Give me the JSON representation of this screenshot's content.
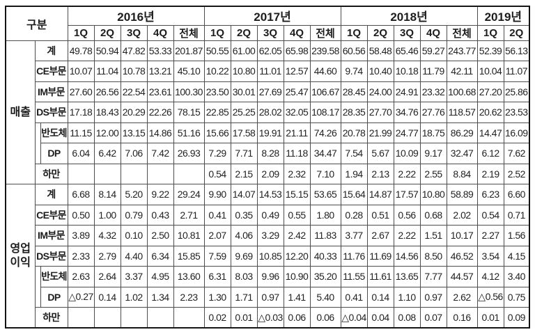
{
  "table": {
    "corner_label": "구분",
    "years": [
      {
        "label": "2016년",
        "quarters": [
          "1Q",
          "2Q",
          "3Q",
          "4Q",
          "전체"
        ]
      },
      {
        "label": "2017년",
        "quarters": [
          "1Q",
          "2Q",
          "3Q",
          "4Q",
          "전체"
        ]
      },
      {
        "label": "2018년",
        "quarters": [
          "1Q",
          "2Q",
          "3Q",
          "4Q",
          "전체"
        ]
      },
      {
        "label": "2019년",
        "quarters": [
          "1Q",
          "2Q"
        ]
      }
    ],
    "sections": [
      {
        "label": "매출",
        "rows": [
          {
            "label": "계",
            "indent": false,
            "values": [
              "49.78",
              "50.94",
              "47.82",
              "53.33",
              "201.87",
              "50.55",
              "61.00",
              "62.05",
              "65.98",
              "239.58",
              "60.56",
              "58.48",
              "65.46",
              "59.27",
              "243.77",
              "52.39",
              "56.13"
            ]
          },
          {
            "label": "CE부문",
            "indent": false,
            "values": [
              "10.07",
              "11.04",
              "10.78",
              "13.21",
              "45.10",
              "10.22",
              "10.80",
              "11.01",
              "12.57",
              "44.60",
              "9.74",
              "10.40",
              "10.18",
              "11.79",
              "42.11",
              "10.04",
              "11.07"
            ]
          },
          {
            "label": "IM부문",
            "indent": false,
            "values": [
              "27.60",
              "26.56",
              "22.54",
              "23.61",
              "100.30",
              "23.50",
              "30.01",
              "27.69",
              "25.47",
              "106.67",
              "28.45",
              "24.00",
              "24.91",
              "23.32",
              "100.68",
              "27.20",
              "25.86"
            ]
          },
          {
            "label": "DS부문",
            "indent": false,
            "values": [
              "17.18",
              "18.43",
              "20.29",
              "22.26",
              "78.15",
              "22.85",
              "25.25",
              "28.02",
              "32.05",
              "108.17",
              "28.35",
              "27.70",
              "34.76",
              "27.76",
              "118.57",
              "20.62",
              "23.53"
            ]
          },
          {
            "label": "반도체",
            "indent": true,
            "values": [
              "11.15",
              "12.00",
              "13.15",
              "14.86",
              "51.16",
              "15.66",
              "17.58",
              "19.91",
              "21.11",
              "74.26",
              "20.78",
              "21.99",
              "24.77",
              "18.75",
              "86.29",
              "14.47",
              "16.09"
            ]
          },
          {
            "label": "DP",
            "indent": true,
            "values": [
              "6.04",
              "6.42",
              "7.06",
              "7.42",
              "26.93",
              "7.29",
              "7.71",
              "8.28",
              "11.18",
              "34.47",
              "7.54",
              "5.67",
              "10.09",
              "9.17",
              "32.47",
              "6.12",
              "7.62"
            ]
          },
          {
            "label": "하만",
            "indent": false,
            "values": [
              "",
              "",
              "",
              "",
              "",
              "0.54",
              "2.15",
              "2.09",
              "2.32",
              "7.10",
              "1.94",
              "2.13",
              "2.22",
              "2.55",
              "8.84",
              "2.19",
              "2.52"
            ]
          }
        ]
      },
      {
        "label": "영업\n이익",
        "rows": [
          {
            "label": "계",
            "indent": false,
            "values": [
              "6.68",
              "8.14",
              "5.20",
              "9.22",
              "29.24",
              "9.90",
              "14.07",
              "14.53",
              "15.15",
              "53.65",
              "15.64",
              "14.87",
              "17.57",
              "10.80",
              "58.89",
              "6.23",
              "6.60"
            ]
          },
          {
            "label": "CE부문",
            "indent": false,
            "values": [
              "0.50",
              "1.00",
              "0.79",
              "0.43",
              "2.71",
              "0.41",
              "0.35",
              "0.49",
              "0.55",
              "1.80",
              "0.28",
              "0.51",
              "0.56",
              "0.68",
              "2.02",
              "0.54",
              "0.71"
            ]
          },
          {
            "label": "IM부문",
            "indent": false,
            "values": [
              "3.89",
              "4.32",
              "0.10",
              "2.50",
              "10.81",
              "2.07",
              "4.06",
              "3.29",
              "2.42",
              "11.83",
              "3.77",
              "2.67",
              "2.22",
              "1.51",
              "10.17",
              "2.27",
              "1.56"
            ]
          },
          {
            "label": "DS부문",
            "indent": false,
            "values": [
              "2.33",
              "2.79",
              "4.40",
              "6.34",
              "15.85",
              "7.59",
              "9.69",
              "10.85",
              "12.20",
              "40.33",
              "11.76",
              "11.69",
              "14.56",
              "8.50",
              "46.52",
              "3.54",
              "4.15"
            ]
          },
          {
            "label": "반도체",
            "indent": true,
            "values": [
              "2.63",
              "2.64",
              "3.37",
              "4.95",
              "13.60",
              "6.31",
              "8.03",
              "9.96",
              "10.90",
              "35.20",
              "11.55",
              "11.61",
              "13.65",
              "7.77",
              "44.57",
              "4.12",
              "3.40"
            ]
          },
          {
            "label": "DP",
            "indent": true,
            "values": [
              "△0.27",
              "0.14",
              "1.02",
              "1.34",
              "2.23",
              "1.30",
              "1.71",
              "0.97",
              "1.41",
              "5.40",
              "0.41",
              "0.14",
              "1.10",
              "0.97",
              "2.62",
              "△0.56",
              "0.75"
            ]
          },
          {
            "label": "하만",
            "indent": false,
            "values": [
              "",
              "",
              "",
              "",
              "",
              "0.02",
              "0.01",
              "△0.03",
              "0.06",
              "0.06",
              "△0.04",
              "0.04",
              "0.08",
              "0.07",
              "0.16",
              "0.01",
              "0.09"
            ]
          }
        ]
      }
    ]
  }
}
